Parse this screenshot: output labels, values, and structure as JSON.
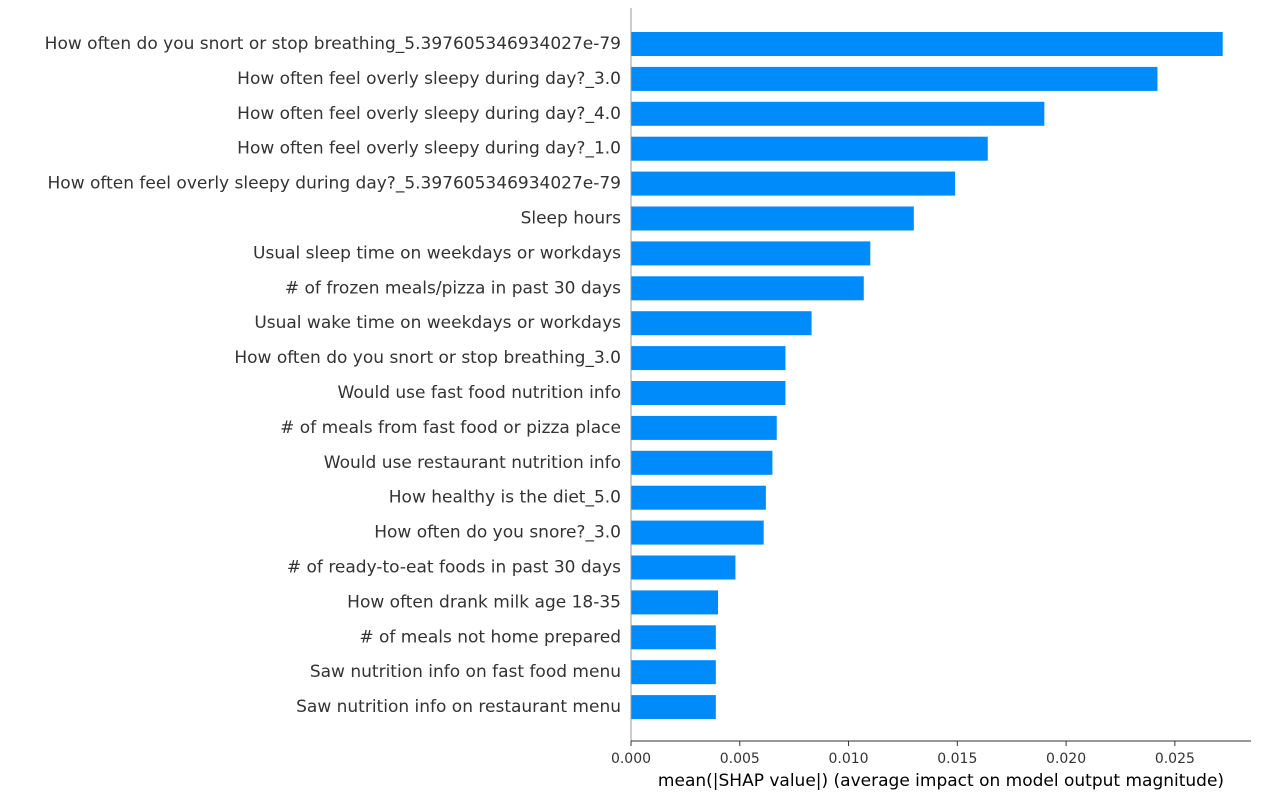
{
  "chart_data": {
    "type": "bar",
    "orientation": "horizontal",
    "title": "",
    "xlabel": "mean(|SHAP value|) (average impact on model output magnitude)",
    "ylabel": "",
    "xlim": [
      0,
      0.0285
    ],
    "xticks": [
      0.0,
      0.005,
      0.01,
      0.015,
      0.02,
      0.025
    ],
    "xtick_labels": [
      "0.000",
      "0.005",
      "0.010",
      "0.015",
      "0.020",
      "0.025"
    ],
    "bar_color": "#008bfb",
    "axis_color": "#999999",
    "grid": false,
    "legend": "none",
    "categories": [
      "How often do you snort or stop breathing_5.397605346934027e-79",
      "How often feel overly sleepy during day?_3.0",
      "How often feel overly sleepy during day?_4.0",
      "How often feel overly sleepy during day?_1.0",
      "How often feel overly sleepy during day?_5.397605346934027e-79",
      "Sleep hours",
      "Usual sleep time on weekdays or workdays",
      "# of frozen meals/pizza in past 30 days",
      "Usual wake time on weekdays or workdays",
      "How often do you snort or stop breathing_3.0",
      "Would use fast food nutrition info",
      "# of meals from fast food or pizza place",
      "Would use restaurant nutrition info",
      "How healthy is the diet_5.0",
      "How often do you snore?_3.0",
      "# of ready-to-eat foods in past 30 days",
      "How often drank milk age 18-35",
      "# of meals not home prepared",
      "Saw nutrition info on fast food menu",
      "Saw nutrition info on restaurant menu"
    ],
    "values": [
      0.0272,
      0.0242,
      0.019,
      0.0164,
      0.0149,
      0.013,
      0.011,
      0.0107,
      0.0083,
      0.0071,
      0.0071,
      0.0067,
      0.0065,
      0.0062,
      0.0061,
      0.0048,
      0.004,
      0.0039,
      0.0039,
      0.0039
    ]
  }
}
